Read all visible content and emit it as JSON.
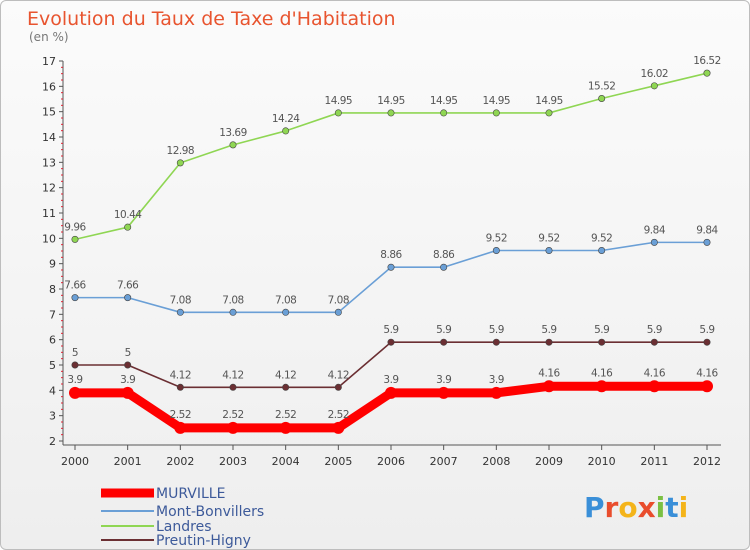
{
  "chart_data": {
    "type": "line",
    "title": "Evolution du Taux de Taxe d'Habitation",
    "unit": "(en %)",
    "x": [
      "2000",
      "2001",
      "2002",
      "2003",
      "2004",
      "2005",
      "2006",
      "2007",
      "2008",
      "2009",
      "2010",
      "2011",
      "2012"
    ],
    "ylim": [
      2,
      17
    ],
    "yticks": [
      2,
      3,
      4,
      5,
      6,
      7,
      8,
      9,
      10,
      11,
      12,
      13,
      14,
      15,
      16,
      17
    ],
    "grid": false,
    "legend": "bottom-left",
    "series": [
      {
        "name": "MURVILLE",
        "color": "#ff0000",
        "values": [
          3.9,
          3.9,
          2.52,
          2.52,
          2.52,
          2.52,
          3.9,
          3.9,
          3.9,
          4.16,
          4.16,
          4.16,
          4.16
        ],
        "labels": [
          "3.9",
          "3.9",
          "2.52",
          "2.52",
          "2.52",
          "2.52",
          "3.9",
          "3.9",
          "3.9",
          "4.16",
          "4.16",
          "4.16",
          "4.16"
        ]
      },
      {
        "name": "Mont-Bonvillers",
        "color": "#6a9fd6",
        "values": [
          7.66,
          7.66,
          7.08,
          7.08,
          7.08,
          7.08,
          8.86,
          8.86,
          9.52,
          9.52,
          9.52,
          9.84,
          9.84
        ],
        "labels": [
          "7.66",
          "7.66",
          "7.08",
          "7.08",
          "7.08",
          "7.08",
          "8.86",
          "8.86",
          "9.52",
          "9.52",
          "9.52",
          "9.84",
          "9.84"
        ]
      },
      {
        "name": "Landres",
        "color": "#8fd653",
        "values": [
          9.96,
          10.44,
          12.98,
          13.69,
          14.24,
          14.95,
          14.95,
          14.95,
          14.95,
          14.95,
          15.52,
          16.02,
          16.52
        ],
        "labels": [
          "9.96",
          "10.44",
          "12.98",
          "13.69",
          "14.24",
          "14.95",
          "14.95",
          "14.95",
          "14.95",
          "14.95",
          "15.52",
          "16.02",
          "16.52"
        ]
      },
      {
        "name": "Preutin-Higny",
        "color": "#6b2f33",
        "values": [
          5,
          5,
          4.12,
          4.12,
          4.12,
          4.12,
          5.9,
          5.9,
          5.9,
          5.9,
          5.9,
          5.9,
          5.9
        ],
        "labels": [
          "5",
          "5",
          "4.12",
          "4.12",
          "4.12",
          "4.12",
          "5.9",
          "5.9",
          "5.9",
          "5.9",
          "5.9",
          "5.9",
          "5.9"
        ]
      }
    ]
  },
  "logo": {
    "text": "Proxiti"
  }
}
